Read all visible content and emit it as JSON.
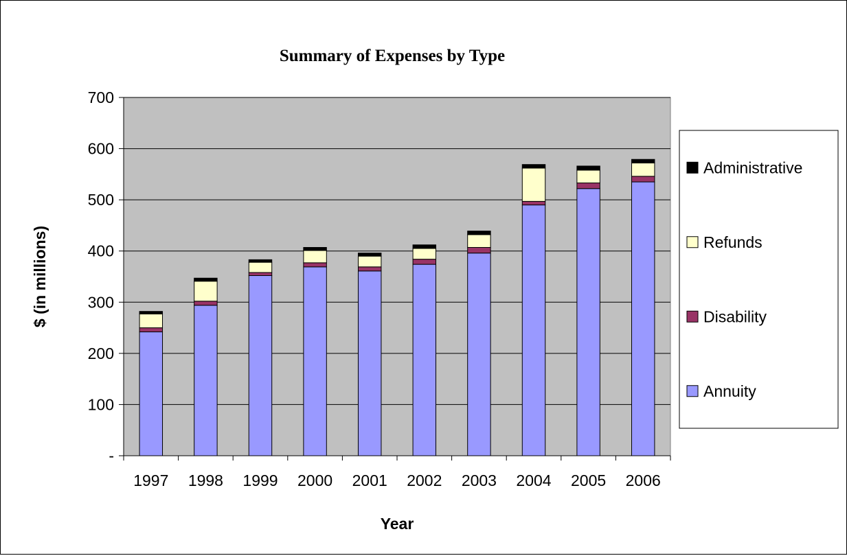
{
  "chart_data": {
    "type": "bar",
    "stacked": true,
    "title": "Summary of Expenses by Type",
    "xlabel": "Year",
    "ylabel": "$ (in millions)",
    "ylim": [
      0,
      700
    ],
    "y_ticks": [
      {
        "value": 0,
        "label": "-"
      },
      {
        "value": 100,
        "label": "100"
      },
      {
        "value": 200,
        "label": "200"
      },
      {
        "value": 300,
        "label": "300"
      },
      {
        "value": 400,
        "label": "400"
      },
      {
        "value": 500,
        "label": "500"
      },
      {
        "value": 600,
        "label": "600"
      },
      {
        "value": 700,
        "label": "700"
      }
    ],
    "categories": [
      "1997",
      "1998",
      "1999",
      "2000",
      "2001",
      "2002",
      "2003",
      "2004",
      "2005",
      "2006"
    ],
    "series": [
      {
        "name": "Annuity",
        "color": "#9999ff",
        "values": [
          242,
          294,
          352,
          369,
          361,
          374,
          396,
          490,
          522,
          535
        ]
      },
      {
        "name": "Disability",
        "color": "#993366",
        "values": [
          8,
          8,
          6,
          8,
          8,
          10,
          11,
          7,
          11,
          11
        ]
      },
      {
        "name": "Refunds",
        "color": "#ffffcc",
        "values": [
          27,
          39,
          20,
          24,
          21,
          21,
          25,
          65,
          25,
          26
        ]
      },
      {
        "name": "Administrative",
        "color": "#000000",
        "values": [
          5,
          6,
          5,
          6,
          6,
          7,
          7,
          7,
          8,
          7
        ]
      }
    ],
    "legend_position": "right",
    "legend_order": [
      "Administrative",
      "Refunds",
      "Disability",
      "Annuity"
    ],
    "grid": true,
    "plot_background": "#c0c0c0"
  }
}
